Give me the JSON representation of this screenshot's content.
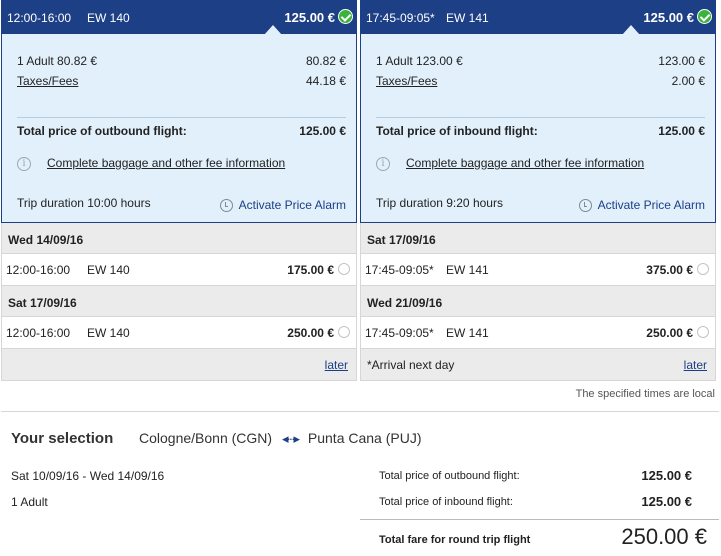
{
  "outbound": {
    "header": {
      "time": "12:00-16:00",
      "flight": "EW 140",
      "price": "125.00 €"
    },
    "details": {
      "adult_label": "1 Adult 80.82 €",
      "adult_value": "80.82 €",
      "taxes_label": "Taxes/Fees",
      "taxes_value": "44.18 €",
      "total_label": "Total price of outbound flight:",
      "total_value": "125.00 €",
      "baggage_link": "Complete baggage and other fee information",
      "duration": "Trip duration 10:00  hours",
      "alarm": "Activate Price Alarm"
    },
    "groups": [
      {
        "date": "Wed 14/09/16",
        "time": "12:00-16:00",
        "flight": "EW 140",
        "price": "175.00 €"
      },
      {
        "date": "Sat 17/09/16",
        "time": "12:00-16:00",
        "flight": "EW 140",
        "price": "250.00 €"
      }
    ],
    "later": "later"
  },
  "inbound": {
    "header": {
      "time": "17:45-09:05*",
      "flight": "EW 141",
      "price": "125.00 €"
    },
    "details": {
      "adult_label": "1 Adult 123.00 €",
      "adult_value": "123.00 €",
      "taxes_label": "Taxes/Fees",
      "taxes_value": "2.00 €",
      "total_label": "Total price of inbound flight:",
      "total_value": "125.00 €",
      "baggage_link": "Complete baggage and other fee information",
      "duration": "Trip duration 9:20  hours",
      "alarm": "Activate Price Alarm"
    },
    "groups": [
      {
        "date": "Sat 17/09/16",
        "time": "17:45-09:05*",
        "flight": "EW 141",
        "price": "375.00 €"
      },
      {
        "date": "Wed 21/09/16",
        "time": "17:45-09:05*",
        "flight": "EW 141",
        "price": "250.00 €"
      }
    ],
    "note": "*Arrival next day",
    "later": "later"
  },
  "local_note": "The specified times are local",
  "selection": {
    "title": "Your selection",
    "from": "Cologne/Bonn (CGN)",
    "to": "Punta Cana (PUJ)",
    "dates": "Sat 10/09/16 - Wed 14/09/16",
    "pax": "1 Adult",
    "outbound_label": "Total price of outbound flight:",
    "outbound_value": "125.00 €",
    "inbound_label": "Total price of inbound flight:",
    "inbound_value": "125.00 €",
    "grand_label": "Total fare for round trip flight",
    "grand_value": "250.00 €"
  },
  "colors": {
    "header_bg": "#1c3f86",
    "detail_bg": "#e2f0fb",
    "selected_check": "#3bb43b"
  }
}
